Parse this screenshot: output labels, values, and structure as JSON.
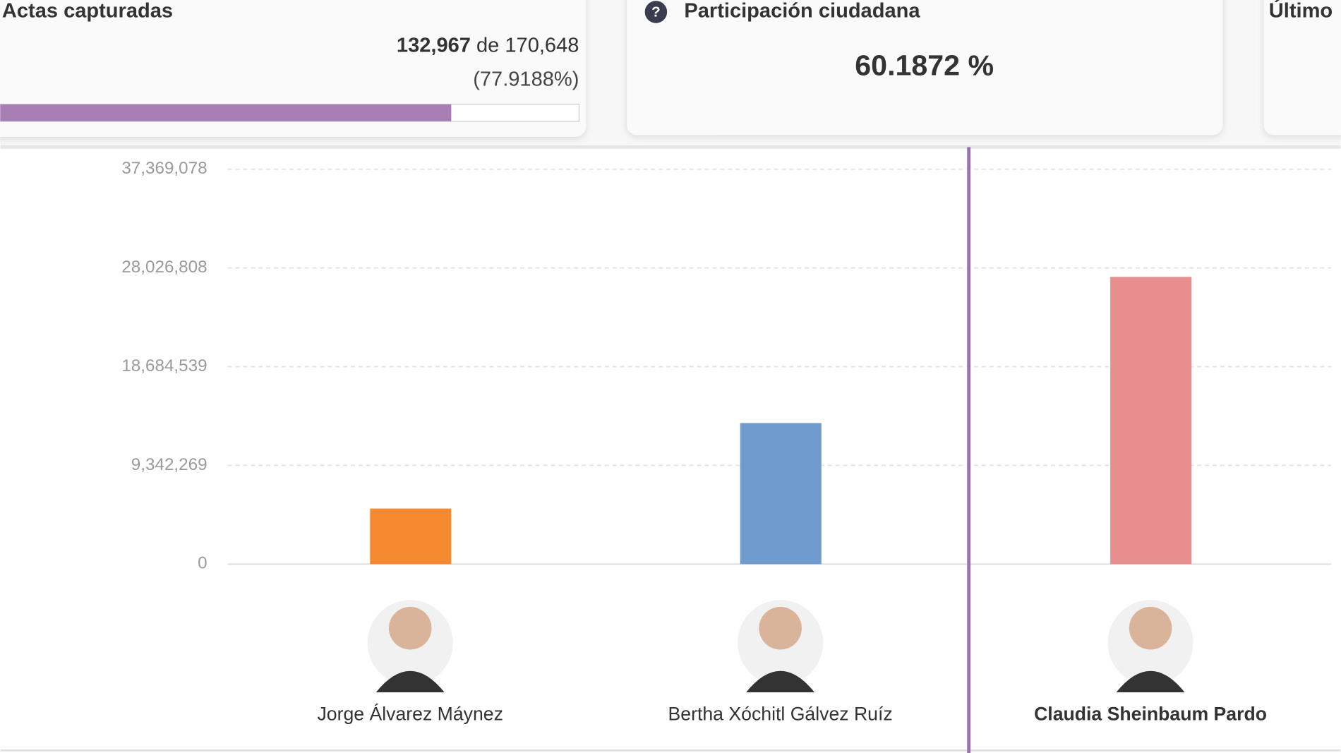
{
  "summary": {
    "actas_title": "Actas capturadas",
    "captured": "132,967",
    "connector": "de",
    "total": "170,648",
    "progress": {
      "value": 77.9188,
      "label": "(77.9188%)"
    },
    "participation_title": "Participación ciudadana",
    "participation_value": "60.1872 %",
    "last_title": "Último"
  },
  "chart_data": {
    "type": "bar",
    "categories": [
      "Jorge Álvarez Máynez",
      "Bertha Xóchitl Gálvez Ruíz",
      "Claudia Sheinbaum Pardo"
    ],
    "values": [
      5260000,
      13350000,
      27180000
    ],
    "colors": [
      "#f5892f",
      "#6f9bcf",
      "#e88e8e"
    ],
    "ylim": [
      0,
      37369078
    ],
    "yticks": [
      0,
      {
        "value": 9342269,
        "label": "9,342,269"
      },
      {
        "value": 18684539,
        "label": "18,684,539"
      },
      {
        "value": 28026808,
        "label": "28,026,808"
      },
      {
        "value": 37369078,
        "label": "37,369,078"
      }
    ],
    "grid": true,
    "highlight": 2
  }
}
